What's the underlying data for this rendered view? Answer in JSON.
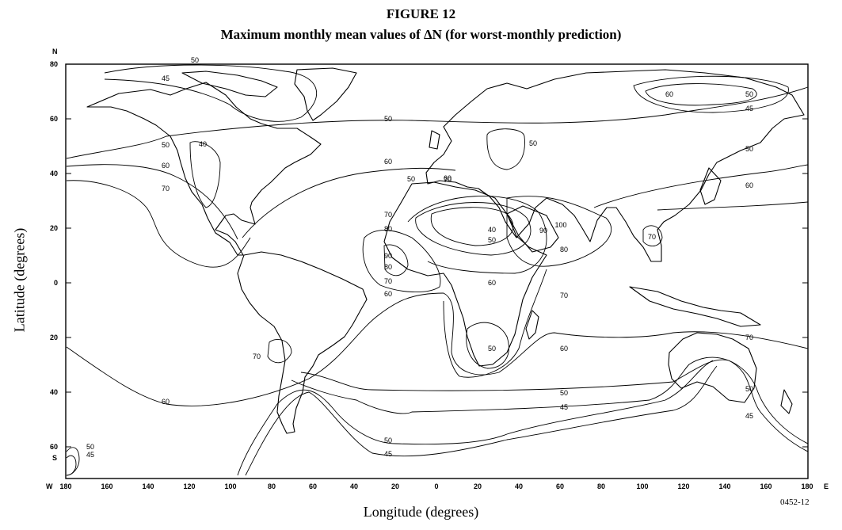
{
  "figure": {
    "number": "FIGURE 12",
    "title": "Maximum monthly mean values of ΔN (for worst-monthly prediction)",
    "code": "0452-12"
  },
  "axes": {
    "ylabel": "Latitude (degrees)",
    "xlabel": "Longitude (degrees)",
    "north": "N",
    "south": "S",
    "west": "W",
    "east": "E",
    "lat_ticks": [
      "80",
      "60",
      "40",
      "20",
      "0",
      "20",
      "40",
      "60"
    ],
    "lon_ticks": [
      "180",
      "160",
      "140",
      "120",
      "100",
      "80",
      "60",
      "40",
      "20",
      "0",
      "20",
      "40",
      "60",
      "80",
      "100",
      "120",
      "140",
      "160",
      "180"
    ]
  },
  "contour_labels": [
    "50",
    "45",
    "60",
    "50",
    "45",
    "50",
    "50",
    "40",
    "60",
    "70",
    "60",
    "50",
    "70",
    "50",
    "40",
    "50",
    "70",
    "80",
    "90",
    "80",
    "70",
    "60",
    "60",
    "50",
    "70",
    "90",
    "100",
    "80",
    "70",
    "70",
    "60",
    "60",
    "50",
    "70",
    "60",
    "50",
    "45",
    "50",
    "45",
    "50",
    "45",
    "60",
    "50",
    "45"
  ]
}
